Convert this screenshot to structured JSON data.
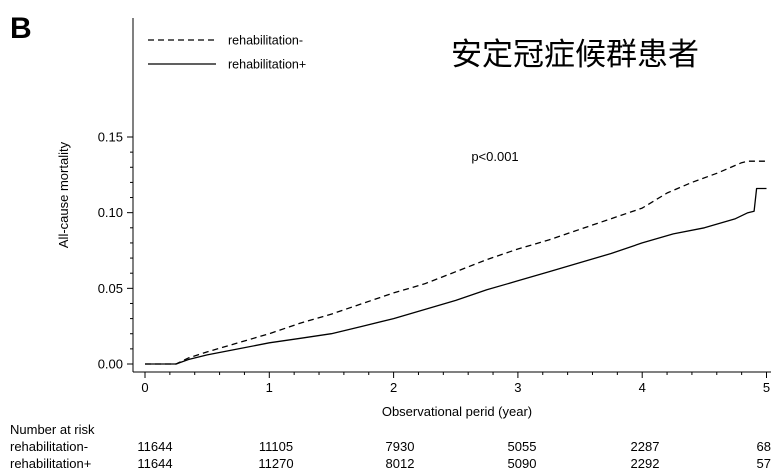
{
  "panel_letter": "B",
  "overlay_title": "安定冠症候群患者",
  "annotation": "p<0.001",
  "risk_table": {
    "title": "Number at risk",
    "rows": [
      {
        "label": "rehabilitation-",
        "values": [
          "11644",
          "11105",
          "7930",
          "5055",
          "2287",
          "68"
        ]
      },
      {
        "label": "rehabilitation+",
        "values": [
          "11644",
          "11270",
          "8012",
          "5090",
          "2292",
          "57"
        ]
      }
    ]
  },
  "chart_data": {
    "type": "line",
    "xlabel": "Observational perid (year)",
    "ylabel": "All-cause mortality",
    "xlim": [
      -0.1,
      5.05
    ],
    "ylim": [
      -0.008,
      0.155
    ],
    "xticks": [
      0,
      1,
      2,
      3,
      4,
      5
    ],
    "xtick_labels": [
      "0",
      "1",
      "2",
      "3",
      "4",
      "5"
    ],
    "yticks": [
      0.0,
      0.05,
      0.1,
      0.15
    ],
    "ytick_labels": [
      "0.00",
      "0.05",
      "0.10",
      "0.15"
    ],
    "legend_position": "top-left",
    "grid": false,
    "series": [
      {
        "name": "rehabilitation-",
        "style": "dashed",
        "color": "#000000",
        "points": [
          [
            0,
            0
          ],
          [
            0.25,
            0
          ],
          [
            0.35,
            0.004
          ],
          [
            0.5,
            0.008
          ],
          [
            0.75,
            0.014
          ],
          [
            1.0,
            0.02
          ],
          [
            1.25,
            0.027
          ],
          [
            1.5,
            0.033
          ],
          [
            1.75,
            0.04
          ],
          [
            2.0,
            0.047
          ],
          [
            2.25,
            0.053
          ],
          [
            2.5,
            0.061
          ],
          [
            2.75,
            0.069
          ],
          [
            3.0,
            0.076
          ],
          [
            3.25,
            0.082
          ],
          [
            3.5,
            0.089
          ],
          [
            3.75,
            0.096
          ],
          [
            4.0,
            0.103
          ],
          [
            4.2,
            0.113
          ],
          [
            4.4,
            0.12
          ],
          [
            4.6,
            0.126
          ],
          [
            4.8,
            0.133
          ],
          [
            4.85,
            0.134
          ],
          [
            5.0,
            0.134
          ]
        ]
      },
      {
        "name": "rehabilitation+",
        "style": "solid",
        "color": "#000000",
        "points": [
          [
            0,
            0
          ],
          [
            0.25,
            0
          ],
          [
            0.35,
            0.003
          ],
          [
            0.5,
            0.006
          ],
          [
            0.75,
            0.01
          ],
          [
            1.0,
            0.014
          ],
          [
            1.25,
            0.017
          ],
          [
            1.5,
            0.02
          ],
          [
            1.75,
            0.025
          ],
          [
            2.0,
            0.03
          ],
          [
            2.25,
            0.036
          ],
          [
            2.5,
            0.042
          ],
          [
            2.75,
            0.049
          ],
          [
            3.0,
            0.055
          ],
          [
            3.25,
            0.061
          ],
          [
            3.5,
            0.067
          ],
          [
            3.75,
            0.073
          ],
          [
            4.0,
            0.08
          ],
          [
            4.25,
            0.086
          ],
          [
            4.5,
            0.09
          ],
          [
            4.75,
            0.096
          ],
          [
            4.85,
            0.1
          ],
          [
            4.9,
            0.101
          ],
          [
            4.92,
            0.116
          ],
          [
            5.0,
            0.116
          ]
        ]
      }
    ]
  }
}
